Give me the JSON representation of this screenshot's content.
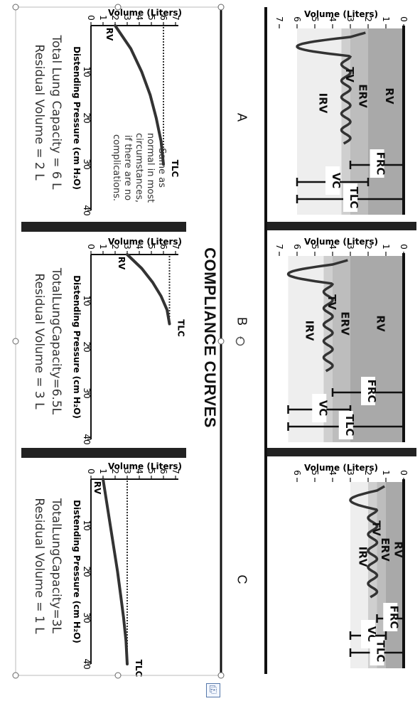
{
  "title": "COMPLIANCE CURVES",
  "column_letters": [
    "A",
    "B",
    "C"
  ],
  "colors": {
    "rv": "#a9a9a9",
    "erv": "#bdbdbd",
    "tv": "#cfcfcf",
    "irv": "#eeeeee",
    "curve": "#333333",
    "rule": "#111111"
  },
  "icons": {
    "rotate": "rotate-icon",
    "control": "paste-options-icon"
  },
  "volume_charts": [
    {
      "column": "A",
      "axis_title": "Volume (Liters)",
      "ticks": [
        "0",
        "1",
        "2",
        "3",
        "4",
        "5",
        "6",
        "7"
      ],
      "regions": [
        "RV",
        "ERV",
        "TV",
        "IRV"
      ],
      "brackets": [
        "FRC",
        "VC",
        "TLC"
      ],
      "values": {
        "RV": 2,
        "ERV": 1,
        "TV": 0.5,
        "IRV": 2.5,
        "FRC": 3,
        "VC": 4,
        "TLC": 6
      }
    },
    {
      "column": "B",
      "axis_title": "Volume (Liters)",
      "ticks": [
        "0",
        "1",
        "2",
        "3",
        "4",
        "5",
        "6",
        "7"
      ],
      "regions": [
        "RV",
        "ERV",
        "TV",
        "IRV"
      ],
      "brackets": [
        "FRC",
        "VC",
        "TLC"
      ],
      "values": {
        "RV": 3,
        "ERV": 1,
        "TV": 0.5,
        "IRV": 2,
        "FRC": 4,
        "VC": 3.5,
        "TLC": 6.5
      }
    },
    {
      "column": "C",
      "axis_title": "Volume (Liters)",
      "ticks": [
        "0",
        "1",
        "2",
        "3",
        "4",
        "5",
        "6"
      ],
      "regions": [
        "RV",
        "ERV",
        "TV",
        "IRV"
      ],
      "brackets": [
        "FRC",
        "VC",
        "TLC"
      ],
      "values": {
        "RV": 1,
        "ERV": 0.5,
        "TV": 0.5,
        "IRV": 1,
        "FRC": 1.5,
        "VC": 2,
        "TLC": 3
      }
    }
  ],
  "compliance_charts": [
    {
      "column": "A",
      "axis_title": "Volume (Liters)",
      "xlabel": "Distending Pressure (cm H₂O)",
      "yticks": [
        "0",
        "1",
        "2",
        "3",
        "4",
        "5",
        "6",
        "7"
      ],
      "xticks": [
        "10",
        "20",
        "30",
        "40"
      ],
      "start_label": "RV",
      "end_label": "TLC",
      "note": [
        "Same as",
        "normal in most",
        "circumstances,",
        "if there are no",
        "complications."
      ],
      "caption": [
        "Total Lung Capacity = 6 L",
        "Residual Volume = 2 L"
      ],
      "chart_data": {
        "type": "line",
        "x": [
          0,
          5,
          10,
          15,
          20,
          25,
          30
        ],
        "y": [
          2,
          3.3,
          4.2,
          4.9,
          5.4,
          5.8,
          6
        ],
        "tlc": 6,
        "xlim": [
          0,
          40
        ],
        "ylim": [
          0,
          7
        ]
      }
    },
    {
      "column": "B",
      "axis_title": "Volume (Liters)",
      "xlabel": "Distending Pressure (cm H₂O)",
      "yticks": [
        "0",
        "1",
        "2",
        "3",
        "4",
        "5",
        "6",
        "7"
      ],
      "xticks": [
        "10",
        "20",
        "30",
        "40"
      ],
      "start_label": "RV",
      "end_label": "TLC",
      "caption": [
        "TotalLungCapacity=6.5L",
        "Residual Volume = 3 L"
      ],
      "chart_data": {
        "type": "line",
        "x": [
          0,
          3,
          6,
          9,
          12,
          15
        ],
        "y": [
          3,
          4.2,
          5.1,
          5.8,
          6.3,
          6.5
        ],
        "tlc": 6.5,
        "xlim": [
          0,
          40
        ],
        "ylim": [
          0,
          7
        ]
      }
    },
    {
      "column": "C",
      "axis_title": "Volume (Liters)",
      "xlabel": "Distending Pressure (cm H₂O)",
      "yticks": [
        "0",
        "1",
        "2",
        "3",
        "4",
        "5",
        "6",
        "7"
      ],
      "xticks": [
        "10",
        "20",
        "30",
        "40"
      ],
      "start_label": "RV",
      "end_label": "TLC",
      "caption": [
        "TotalLungCapacity=3L",
        "Residual Volume = 1 L"
      ],
      "chart_data": {
        "type": "line",
        "x": [
          0,
          5,
          10,
          15,
          20,
          25,
          30,
          35,
          40
        ],
        "y": [
          1,
          1.3,
          1.6,
          1.9,
          2.2,
          2.45,
          2.7,
          2.9,
          3
        ],
        "tlc": 3,
        "xlim": [
          0,
          40
        ],
        "ylim": [
          0,
          7
        ]
      }
    }
  ]
}
